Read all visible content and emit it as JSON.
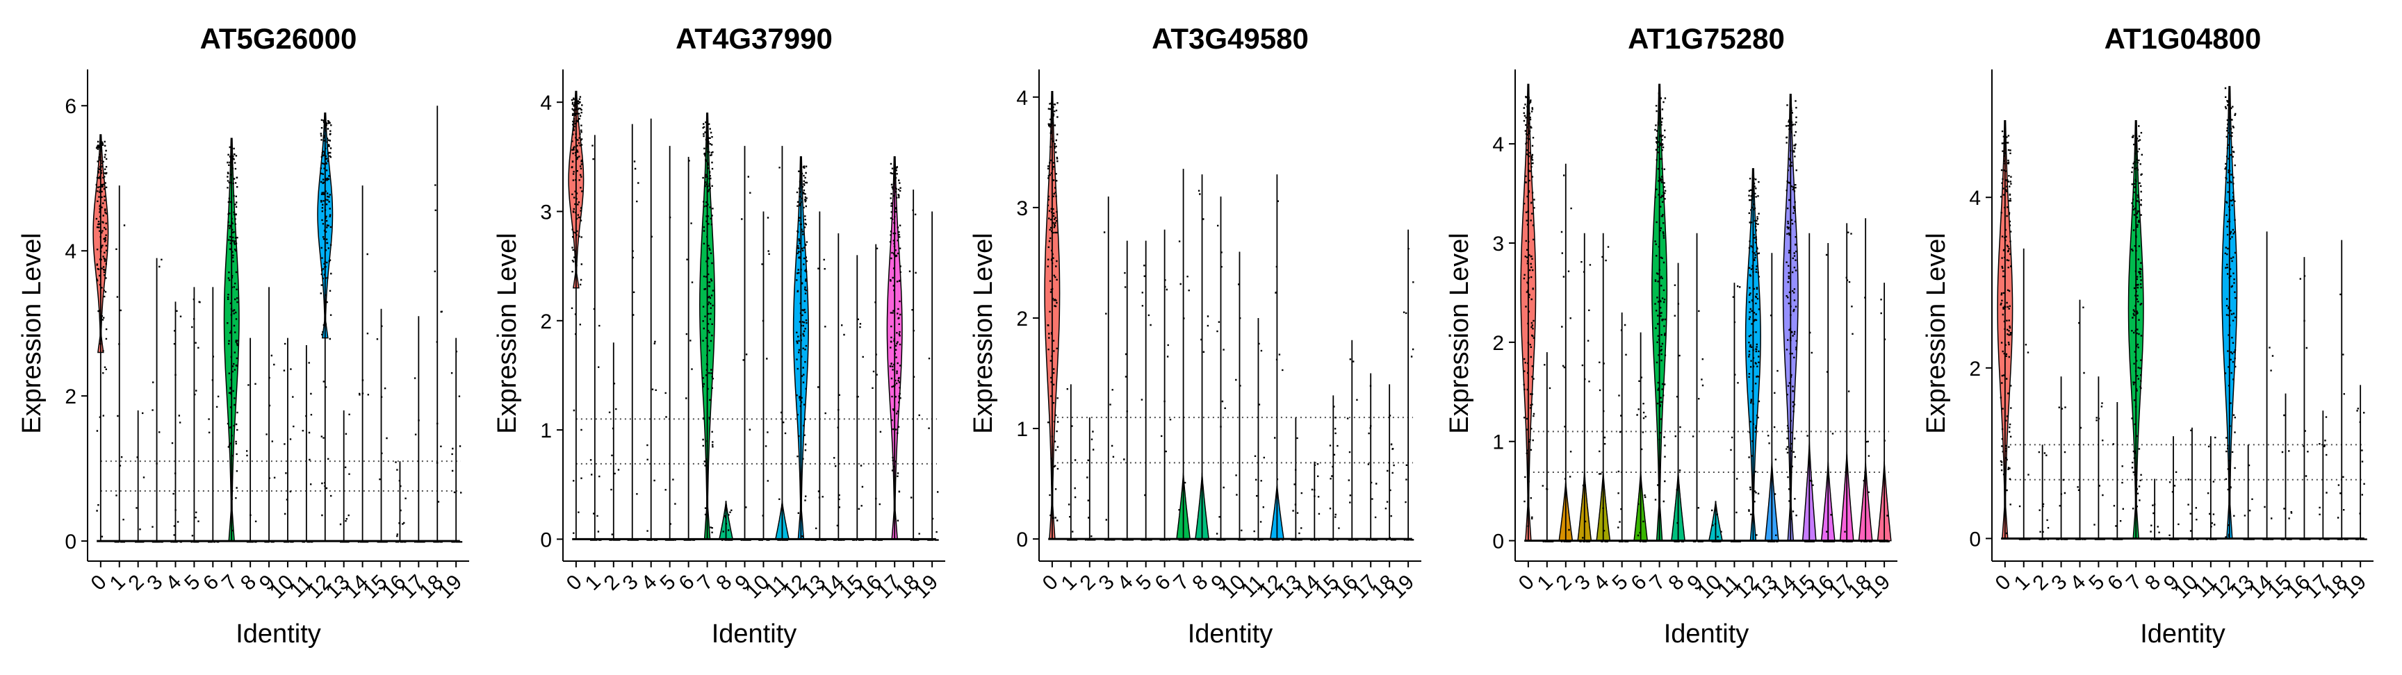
{
  "figure": {
    "panel_titles": [
      "AT5G26000",
      "AT4G37990",
      "AT3G49580",
      "AT1G75280",
      "AT1G04800"
    ]
  },
  "chart_data": [
    {
      "type": "violin",
      "title": "AT5G26000",
      "xlabel": "Identity",
      "ylabel": "Expression Level",
      "categories": [
        "0",
        "1",
        "2",
        "3",
        "4",
        "5",
        "6",
        "7",
        "8",
        "9",
        "10",
        "11",
        "12",
        "13",
        "14",
        "15",
        "16",
        "17",
        "18",
        "19"
      ],
      "colors": [
        "#F8766D",
        "#EA8331",
        "#D89000",
        "#C09B00",
        "#A3A500",
        "#7CAE00",
        "#39B600",
        "#00BB4E",
        "#00BF7D",
        "#00C1A3",
        "#00BFC4",
        "#00BAE0",
        "#00B0F6",
        "#35A2FF",
        "#9590FF",
        "#C77CFF",
        "#E76BF3",
        "#FA62DB",
        "#FF62BC",
        "#FF6C91"
      ],
      "ylim": [
        -0.2,
        6.5
      ],
      "yticks": [
        0,
        2,
        4,
        6
      ],
      "y_tick_labels": [
        "0",
        "2",
        "4",
        "6"
      ],
      "max_values": [
        5.6,
        4.9,
        1.8,
        3.9,
        3.3,
        3.5,
        3.5,
        5.55,
        2.8,
        3.5,
        2.8,
        2.7,
        5.9,
        1.8,
        4.9,
        3.2,
        1.1,
        3.1,
        6.0,
        2.8
      ],
      "body_extent": [
        [
          2.6,
          5.6
        ],
        null,
        null,
        null,
        null,
        null,
        null,
        [
          0.0,
          5.55
        ],
        null,
        null,
        null,
        null,
        [
          2.8,
          5.9
        ],
        null,
        null,
        null,
        null,
        null,
        null,
        null
      ],
      "legend": "none"
    },
    {
      "type": "violin",
      "title": "AT4G37990",
      "xlabel": "Identity",
      "ylabel": "Expression Level",
      "categories": [
        "0",
        "1",
        "2",
        "3",
        "4",
        "5",
        "6",
        "7",
        "8",
        "9",
        "10",
        "11",
        "12",
        "13",
        "14",
        "15",
        "16",
        "17",
        "18",
        "19"
      ],
      "colors": [
        "#F8766D",
        "#EA8331",
        "#D89000",
        "#C09B00",
        "#A3A500",
        "#7CAE00",
        "#39B600",
        "#00BB4E",
        "#00BF7D",
        "#00C1A3",
        "#00BFC4",
        "#00BAE0",
        "#00B0F6",
        "#35A2FF",
        "#9590FF",
        "#C77CFF",
        "#E76BF3",
        "#FA62DB",
        "#FF62BC",
        "#FF6C91"
      ],
      "ylim": [
        -0.15,
        4.3
      ],
      "yticks": [
        0,
        1,
        2,
        3,
        4
      ],
      "y_tick_labels": [
        "0",
        "1",
        "2",
        "3",
        "4"
      ],
      "max_values": [
        4.1,
        3.7,
        1.8,
        3.8,
        3.85,
        3.6,
        3.5,
        3.9,
        0.35,
        3.6,
        3.0,
        3.6,
        3.5,
        3.0,
        2.8,
        2.6,
        2.7,
        3.5,
        3.2,
        3.0
      ],
      "body_extent": [
        [
          2.3,
          4.1
        ],
        null,
        null,
        null,
        null,
        null,
        null,
        [
          0.0,
          3.9
        ],
        [
          0.0,
          0.35
        ],
        null,
        null,
        [
          0.0,
          0.35
        ],
        [
          0.0,
          3.5
        ],
        null,
        null,
        null,
        null,
        [
          0.0,
          3.5
        ],
        null,
        null
      ],
      "legend": "none"
    },
    {
      "type": "violin",
      "title": "AT3G49580",
      "xlabel": "Identity",
      "ylabel": "Expression Level",
      "categories": [
        "0",
        "1",
        "2",
        "3",
        "4",
        "5",
        "6",
        "7",
        "8",
        "9",
        "10",
        "11",
        "12",
        "13",
        "14",
        "15",
        "16",
        "17",
        "18",
        "19"
      ],
      "colors": [
        "#F8766D",
        "#EA8331",
        "#D89000",
        "#C09B00",
        "#A3A500",
        "#7CAE00",
        "#39B600",
        "#00BB4E",
        "#00BF7D",
        "#00C1A3",
        "#00BFC4",
        "#00BAE0",
        "#00B0F6",
        "#35A2FF",
        "#9590FF",
        "#C77CFF",
        "#E76BF3",
        "#FA62DB",
        "#FF62BC",
        "#FF6C91"
      ],
      "ylim": [
        -0.15,
        4.25
      ],
      "yticks": [
        0,
        1,
        2,
        3,
        4
      ],
      "y_tick_labels": [
        "0",
        "1",
        "2",
        "3",
        "4"
      ],
      "max_values": [
        4.05,
        1.4,
        1.1,
        3.1,
        2.7,
        2.7,
        2.8,
        3.35,
        3.3,
        3.1,
        2.6,
        2.0,
        3.3,
        1.1,
        0.7,
        1.3,
        1.8,
        1.5,
        1.4,
        2.8
      ],
      "body_extent": [
        [
          0.0,
          4.05
        ],
        null,
        null,
        null,
        null,
        null,
        null,
        [
          0.0,
          0.6
        ],
        [
          0.0,
          0.6
        ],
        null,
        null,
        null,
        [
          0.0,
          0.5
        ],
        null,
        null,
        null,
        null,
        null,
        null,
        null
      ],
      "legend": "none"
    },
    {
      "type": "violin",
      "title": "AT1G75280",
      "xlabel": "Identity",
      "ylabel": "Expression Level",
      "categories": [
        "0",
        "1",
        "2",
        "3",
        "4",
        "5",
        "6",
        "7",
        "8",
        "9",
        "10",
        "11",
        "12",
        "13",
        "14",
        "15",
        "16",
        "17",
        "18",
        "19"
      ],
      "colors": [
        "#F8766D",
        "#EA8331",
        "#D89000",
        "#C09B00",
        "#A3A500",
        "#7CAE00",
        "#39B600",
        "#00BB4E",
        "#00BF7D",
        "#00C1A3",
        "#00BFC4",
        "#00BAE0",
        "#00B0F6",
        "#35A2FF",
        "#9590FF",
        "#C77CFF",
        "#E76BF3",
        "#FA62DB",
        "#FF62BC",
        "#FF6C91"
      ],
      "ylim": [
        -0.15,
        4.75
      ],
      "yticks": [
        0,
        1,
        2,
        3,
        4
      ],
      "y_tick_labels": [
        "0",
        "1",
        "2",
        "3",
        "4"
      ],
      "max_values": [
        4.6,
        1.9,
        3.8,
        3.1,
        3.1,
        2.3,
        2.1,
        4.6,
        2.8,
        3.1,
        0.4,
        2.6,
        3.75,
        2.9,
        4.5,
        3.1,
        3.0,
        3.2,
        3.25,
        2.6
      ],
      "body_extent": [
        [
          0.0,
          4.6
        ],
        null,
        [
          0.0,
          0.6
        ],
        [
          0.0,
          0.7
        ],
        [
          0.0,
          0.7
        ],
        null,
        [
          0.0,
          0.7
        ],
        [
          0.0,
          4.6
        ],
        [
          0.0,
          0.7
        ],
        null,
        [
          0.0,
          0.4
        ],
        null,
        [
          0.0,
          3.75
        ],
        [
          0.0,
          0.8
        ],
        [
          0.0,
          4.5
        ],
        [
          0.0,
          1.0
        ],
        [
          0.0,
          0.8
        ],
        [
          0.0,
          0.9
        ],
        [
          0.0,
          0.8
        ],
        [
          0.0,
          0.8
        ]
      ],
      "legend": "none"
    },
    {
      "type": "violin",
      "title": "AT1G04800",
      "xlabel": "Identity",
      "ylabel": "Expression Level",
      "categories": [
        "0",
        "1",
        "2",
        "3",
        "4",
        "5",
        "6",
        "7",
        "8",
        "9",
        "10",
        "11",
        "12",
        "13",
        "14",
        "15",
        "16",
        "17",
        "18",
        "19"
      ],
      "colors": [
        "#F8766D",
        "#EA8331",
        "#D89000",
        "#C09B00",
        "#A3A500",
        "#7CAE00",
        "#39B600",
        "#00BB4E",
        "#00BF7D",
        "#00C1A3",
        "#00BFC4",
        "#00BAE0",
        "#00B0F6",
        "#35A2FF",
        "#9590FF",
        "#C77CFF",
        "#E76BF3",
        "#FA62DB",
        "#FF62BC",
        "#FF6C91"
      ],
      "ylim": [
        -0.2,
        5.5
      ],
      "yticks": [
        0,
        2,
        4
      ],
      "y_tick_labels": [
        "0",
        "2",
        "4"
      ],
      "max_values": [
        4.9,
        3.4,
        1.1,
        1.9,
        2.8,
        1.9,
        1.6,
        4.9,
        0.7,
        1.2,
        1.3,
        1.2,
        5.3,
        1.1,
        3.6,
        1.7,
        3.3,
        1.5,
        3.5,
        1.8
      ],
      "body_extent": [
        [
          0.0,
          4.9
        ],
        null,
        null,
        null,
        null,
        null,
        null,
        [
          0.0,
          4.9
        ],
        null,
        null,
        null,
        null,
        [
          0.0,
          5.3
        ],
        null,
        null,
        null,
        null,
        null,
        null,
        null
      ],
      "legend": "none"
    }
  ]
}
